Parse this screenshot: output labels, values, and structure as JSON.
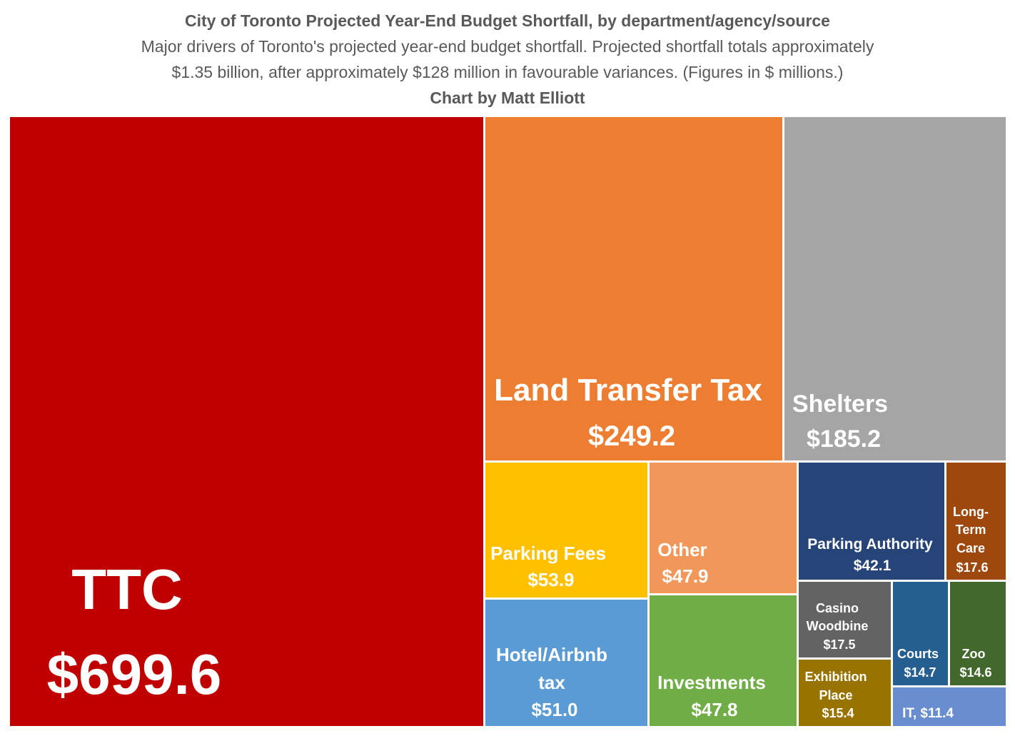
{
  "chart_data": {
    "type": "treemap",
    "title": "City of Toronto Projected Year-End Budget Shortfall, by department/agency/source",
    "subtitle_lines": [
      "Major drivers of Toronto's projected year-end budget shortfall. Projected shortfall totals approximately",
      "$1.35 billion, after approximately $128 million in favourable variances. (Figures in $ millions.)"
    ],
    "credit": "Chart by Matt Elliott",
    "items": [
      {
        "label": "TTC",
        "value": 699.6,
        "value_label": "$699.6",
        "color": "#C00000"
      },
      {
        "label": "Land Transfer Tax",
        "value": 249.2,
        "value_label": "$249.2",
        "color": "#ED7D31"
      },
      {
        "label": "Shelters",
        "value": 185.2,
        "value_label": "$185.2",
        "color": "#A5A5A5"
      },
      {
        "label": "Parking Fees",
        "value": 53.9,
        "value_label": "$53.9",
        "color": "#FFC000"
      },
      {
        "label": "Hotel/Airbnb tax",
        "value": 51.0,
        "value_label": "$51.0",
        "color": "#5B9BD5"
      },
      {
        "label": "Other",
        "value": 47.9,
        "value_label": "$47.9",
        "color": "#F1975A"
      },
      {
        "label": "Investments",
        "value": 47.8,
        "value_label": "$47.8",
        "color": "#70AD47"
      },
      {
        "label": "Parking Authority",
        "value": 42.1,
        "value_label": "$42.1",
        "color": "#264478"
      },
      {
        "label": "Long-Term Care",
        "value": 17.6,
        "value_label": "$17.6",
        "color": "#9E480E"
      },
      {
        "label": "Casino Woodbine",
        "value": 17.5,
        "value_label": "$17.5",
        "color": "#636363"
      },
      {
        "label": "Exhibition Place",
        "value": 15.4,
        "value_label": "$15.4",
        "color": "#997300"
      },
      {
        "label": "Courts",
        "value": 14.7,
        "value_label": "$14.7",
        "color": "#255E91"
      },
      {
        "label": "Zoo",
        "value": 14.6,
        "value_label": "$14.6",
        "color": "#43682B"
      },
      {
        "label": "IT,",
        "value": 11.4,
        "value_label": "$11.4",
        "color": "#698ED0"
      }
    ]
  }
}
